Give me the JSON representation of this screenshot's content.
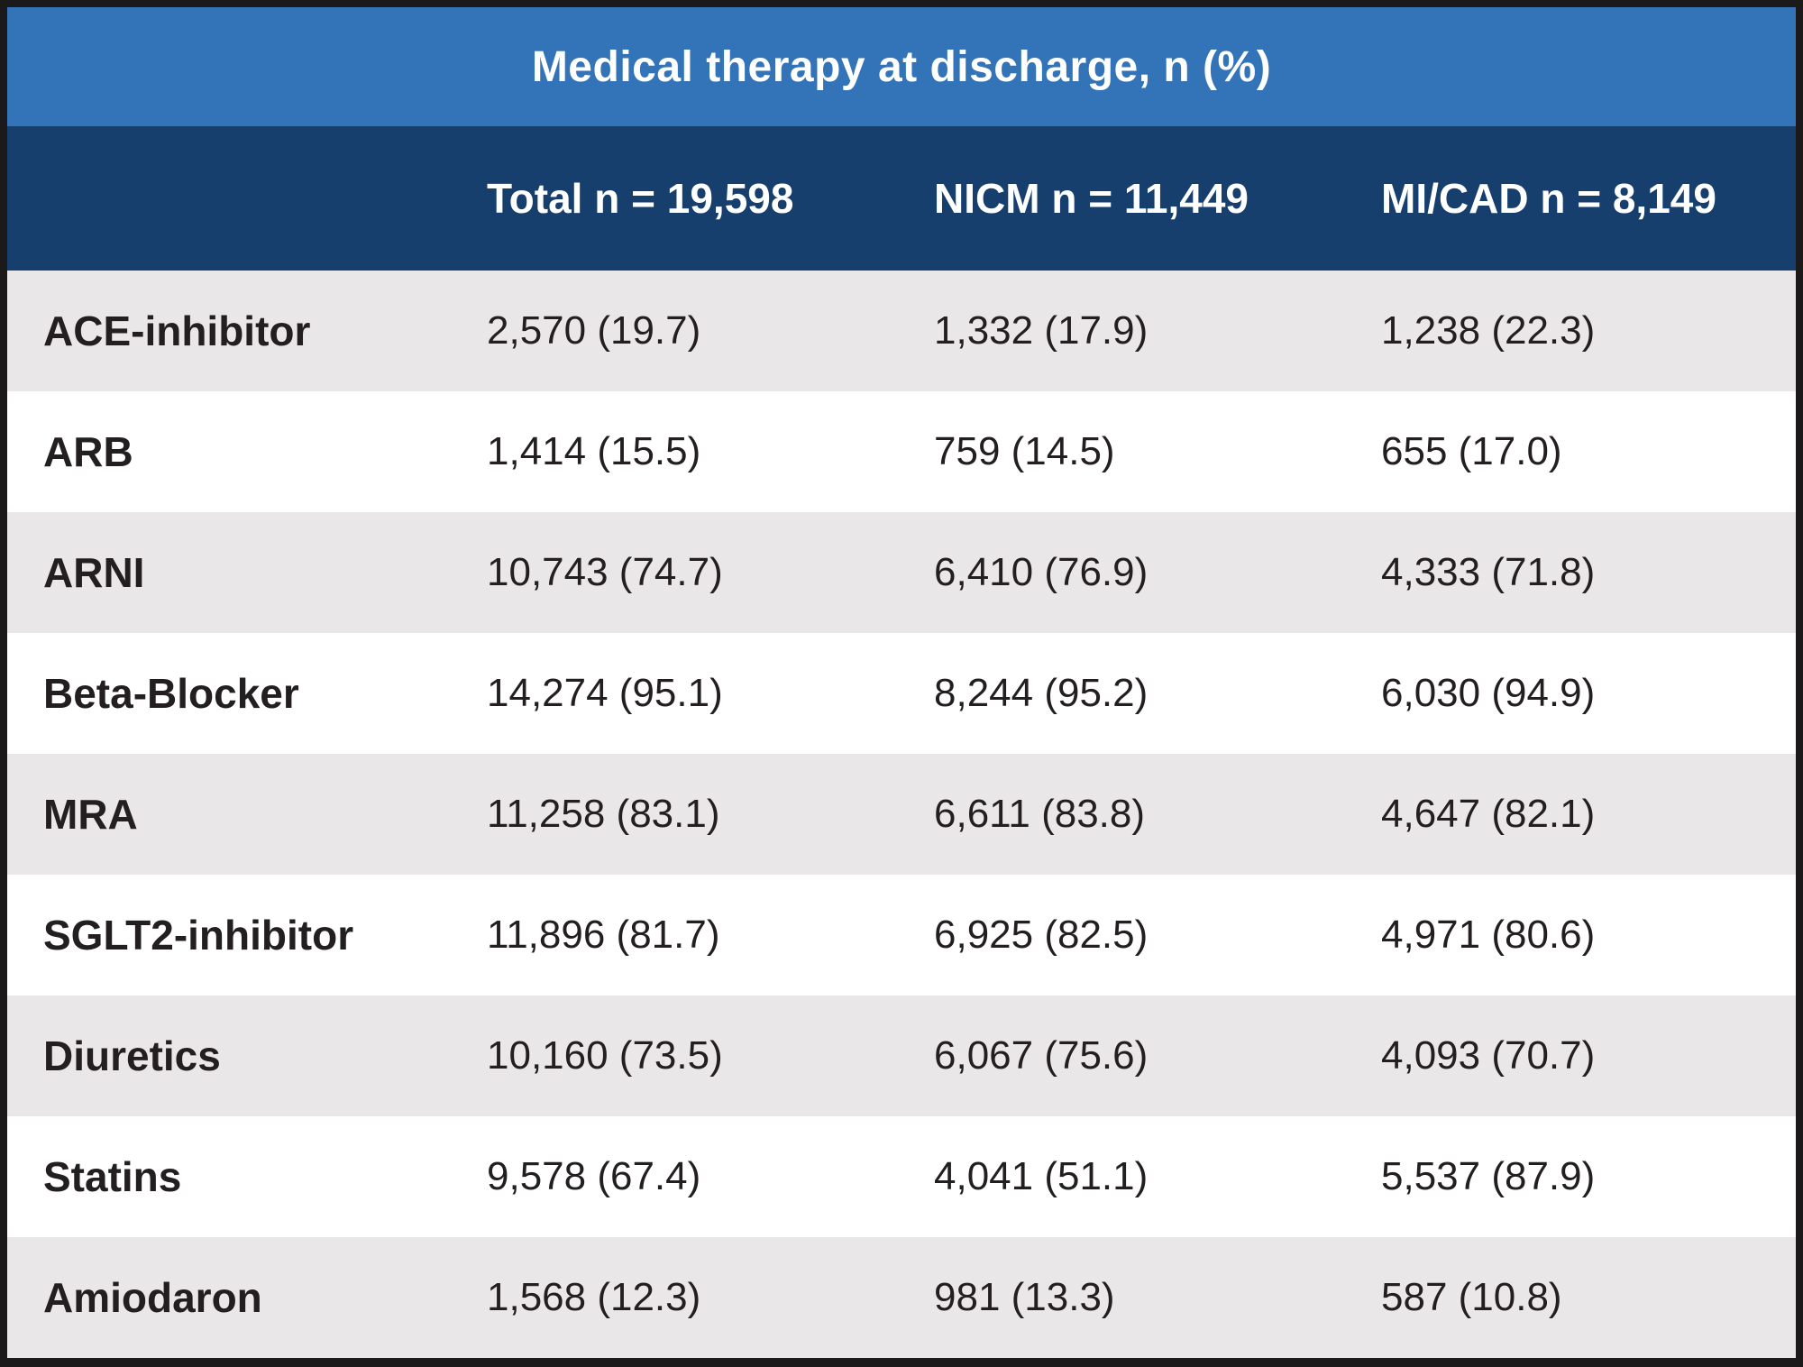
{
  "table": {
    "title": "Medical therapy at discharge, n (%)",
    "columns": {
      "label": "",
      "total": "Total n = 19,598",
      "nicm": "NICM n = 11,449",
      "micad": "MI/CAD n = 8,149"
    },
    "rows": [
      {
        "label": "ACE-inhibitor",
        "total": "2,570 (19.7)",
        "nicm": "1,332 (17.9)",
        "micad": "1,238 (22.3)"
      },
      {
        "label": "ARB",
        "total": "1,414 (15.5)",
        "nicm": "759 (14.5)",
        "micad": "655 (17.0)"
      },
      {
        "label": "ARNI",
        "total": "10,743 (74.7)",
        "nicm": "6,410 (76.9)",
        "micad": "4,333 (71.8)"
      },
      {
        "label": "Beta-Blocker",
        "total": "14,274 (95.1)",
        "nicm": "8,244 (95.2)",
        "micad": "6,030 (94.9)"
      },
      {
        "label": "MRA",
        "total": "11,258 (83.1)",
        "nicm": "6,611 (83.8)",
        "micad": "4,647 (82.1)"
      },
      {
        "label": "SGLT2-inhibitor",
        "total": "11,896 (81.7)",
        "nicm": "6,925 (82.5)",
        "micad": "4,971 (80.6)"
      },
      {
        "label": "Diuretics",
        "total": "10,160 (73.5)",
        "nicm": "6,067 (75.6)",
        "micad": "4,093 (70.7)"
      },
      {
        "label": "Statins",
        "total": "9,578 (67.4)",
        "nicm": "4,041 (51.1)",
        "micad": "5,537 (87.9)"
      },
      {
        "label": "Amiodaron",
        "total": "1,568 (12.3)",
        "nicm": "981 (13.3)",
        "micad": "587 (10.8)"
      }
    ]
  },
  "colors": {
    "title_bar_blue": "#3373b8",
    "header_navy": "#163f6e",
    "stripe_gray": "#eae7e8",
    "stripe_white": "#ffffff",
    "text_dark": "#231f20",
    "text_white": "#ffffff",
    "border_dark": "#1b191a"
  },
  "chart_data": {
    "type": "table",
    "title": "Medical therapy at discharge, n (%)",
    "columns": [
      "",
      "Total n = 19,598",
      "NICM n = 11,449",
      "MI/CAD n = 8,149"
    ],
    "group_sizes": {
      "total": 19598,
      "nicm": 11449,
      "micad": 8149
    },
    "rows": [
      {
        "label": "ACE-inhibitor",
        "total_n": 2570,
        "total_pct": 19.7,
        "nicm_n": 1332,
        "nicm_pct": 17.9,
        "micad_n": 1238,
        "micad_pct": 22.3
      },
      {
        "label": "ARB",
        "total_n": 1414,
        "total_pct": 15.5,
        "nicm_n": 759,
        "nicm_pct": 14.5,
        "micad_n": 655,
        "micad_pct": 17.0
      },
      {
        "label": "ARNI",
        "total_n": 10743,
        "total_pct": 74.7,
        "nicm_n": 6410,
        "nicm_pct": 76.9,
        "micad_n": 4333,
        "micad_pct": 71.8
      },
      {
        "label": "Beta-Blocker",
        "total_n": 14274,
        "total_pct": 95.1,
        "nicm_n": 8244,
        "nicm_pct": 95.2,
        "micad_n": 6030,
        "micad_pct": 94.9
      },
      {
        "label": "MRA",
        "total_n": 11258,
        "total_pct": 83.1,
        "nicm_n": 6611,
        "nicm_pct": 83.8,
        "micad_n": 4647,
        "micad_pct": 82.1
      },
      {
        "label": "SGLT2-inhibitor",
        "total_n": 11896,
        "total_pct": 81.7,
        "nicm_n": 6925,
        "nicm_pct": 82.5,
        "micad_n": 4971,
        "micad_pct": 80.6
      },
      {
        "label": "Diuretics",
        "total_n": 10160,
        "total_pct": 73.5,
        "nicm_n": 6067,
        "nicm_pct": 75.6,
        "micad_n": 4093,
        "micad_pct": 70.7
      },
      {
        "label": "Statins",
        "total_n": 9578,
        "total_pct": 67.4,
        "nicm_n": 4041,
        "nicm_pct": 51.1,
        "micad_n": 5537,
        "micad_pct": 87.9
      },
      {
        "label": "Amiodaron",
        "total_n": 1568,
        "total_pct": 12.3,
        "nicm_n": 981,
        "nicm_pct": 13.3,
        "micad_n": 587,
        "micad_pct": 10.8
      }
    ]
  }
}
